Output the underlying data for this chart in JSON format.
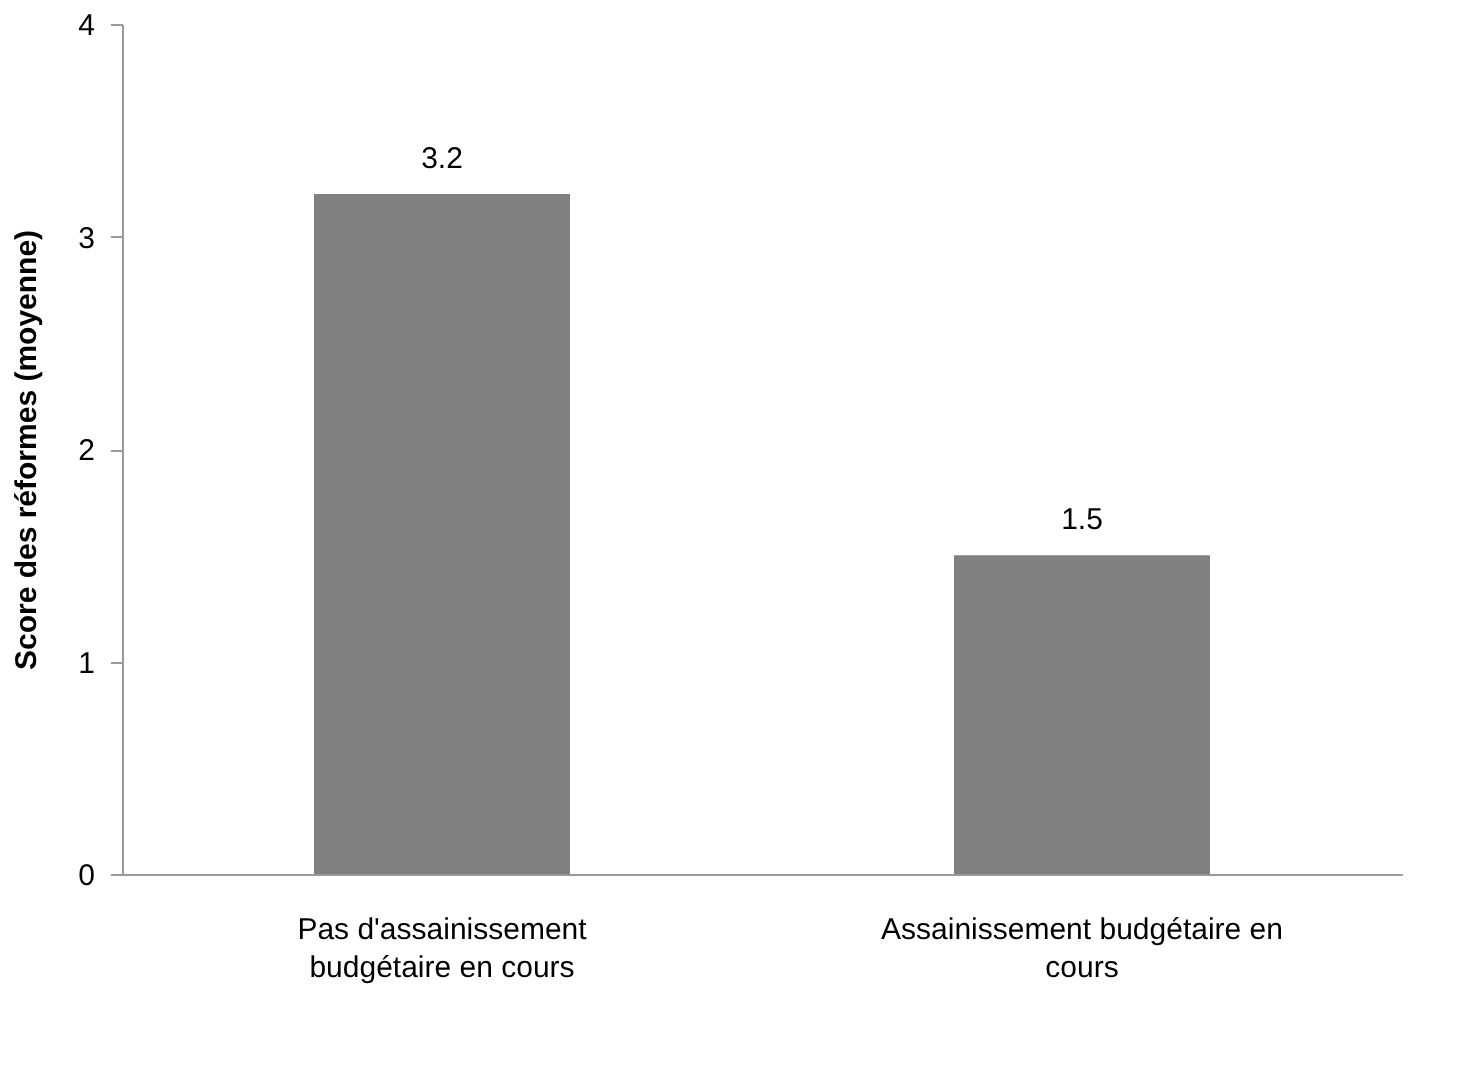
{
  "chart_data": {
    "type": "bar",
    "ylabel": "Score des réformes (moyenne)",
    "categories": [
      "Pas d'assainissement budgétaire en cours",
      "Assainissement budgétaire en cours"
    ],
    "values": [
      3.2,
      1.5
    ],
    "color": "#808080",
    "ylim": [
      0,
      4
    ],
    "yticks": [
      0,
      1,
      2,
      3,
      4
    ],
    "grid": false,
    "data_labels": true
  }
}
